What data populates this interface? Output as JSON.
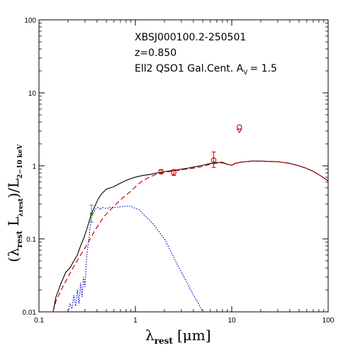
{
  "chart_data": {
    "type": "line",
    "x_scale": "log",
    "y_scale": "log",
    "xlim": [
      0.1,
      100
    ],
    "ylim": [
      0.01,
      100
    ],
    "x_ticks": [
      {
        "value": 0.1,
        "label": "0.1"
      },
      {
        "value": 1,
        "label": "1"
      },
      {
        "value": 10,
        "label": "10"
      },
      {
        "value": 100,
        "label": "100"
      }
    ],
    "y_ticks": [
      {
        "value": 0.01,
        "label": "0.01"
      },
      {
        "value": 0.1,
        "label": "0.1"
      },
      {
        "value": 1,
        "label": "1"
      },
      {
        "value": 10,
        "label": "10"
      },
      {
        "value": 100,
        "label": "100"
      }
    ],
    "xlabel": {
      "main": "λ",
      "sub": "rest",
      "unit": "[μm]"
    },
    "ylabel": {
      "part1": "(λ",
      "sub1": "rest",
      "part2": " L",
      "sub2": "λrest",
      "part3": ")/L",
      "sub3": "2−10 keV"
    },
    "annotations": {
      "source": "XBSJ000100.2-250501",
      "redshift": "z=0.850",
      "model": "Ell2 QSO1 Gal.Cent. A",
      "model_sub": "V",
      "model_val": "= 1.5"
    },
    "colors": {
      "total": "#000000",
      "galaxy": "#cc0000",
      "agn": "#0000cc",
      "photometry": "#cc0000",
      "optical_point": "#2e8b2e",
      "optical_errorbar": "#808080"
    },
    "series": [
      {
        "style": "solid",
        "color": "#000000",
        "points": [
          [
            0.14,
            0.01
          ],
          [
            0.15,
            0.016
          ],
          [
            0.17,
            0.025
          ],
          [
            0.19,
            0.035
          ],
          [
            0.21,
            0.04
          ],
          [
            0.23,
            0.05
          ],
          [
            0.25,
            0.06
          ],
          [
            0.27,
            0.08
          ],
          [
            0.29,
            0.1
          ],
          [
            0.31,
            0.13
          ],
          [
            0.33,
            0.17
          ],
          [
            0.35,
            0.22
          ],
          [
            0.38,
            0.28
          ],
          [
            0.41,
            0.35
          ],
          [
            0.45,
            0.42
          ],
          [
            0.5,
            0.48
          ],
          [
            0.55,
            0.5
          ],
          [
            0.6,
            0.52
          ],
          [
            0.7,
            0.58
          ],
          [
            0.8,
            0.63
          ],
          [
            0.9,
            0.67
          ],
          [
            1.0,
            0.7
          ],
          [
            1.2,
            0.74
          ],
          [
            1.4,
            0.76
          ],
          [
            1.6,
            0.79
          ],
          [
            1.9,
            0.82
          ],
          [
            2.2,
            0.85
          ],
          [
            2.6,
            0.87
          ],
          [
            3.0,
            0.9
          ],
          [
            3.5,
            0.93
          ],
          [
            4.0,
            0.96
          ],
          [
            5.0,
            1.02
          ],
          [
            6.0,
            1.08
          ],
          [
            7.0,
            1.11
          ],
          [
            8.0,
            1.12
          ],
          [
            9.0,
            1.05
          ],
          [
            10.0,
            1.02
          ],
          [
            11.0,
            1.09
          ],
          [
            13.0,
            1.13
          ],
          [
            16.0,
            1.16
          ],
          [
            20.0,
            1.16
          ],
          [
            30.0,
            1.14
          ],
          [
            40.0,
            1.08
          ],
          [
            50.0,
            1.0
          ],
          [
            60.0,
            0.92
          ],
          [
            70.0,
            0.84
          ],
          [
            85.0,
            0.72
          ],
          [
            100.0,
            0.62
          ]
        ]
      },
      {
        "style": "dashed",
        "color": "#cc0000",
        "points": [
          [
            0.14,
            0.01
          ],
          [
            0.15,
            0.014
          ],
          [
            0.17,
            0.02
          ],
          [
            0.2,
            0.03
          ],
          [
            0.23,
            0.042
          ],
          [
            0.26,
            0.055
          ],
          [
            0.3,
            0.075
          ],
          [
            0.34,
            0.1
          ],
          [
            0.38,
            0.13
          ],
          [
            0.42,
            0.16
          ],
          [
            0.47,
            0.2
          ],
          [
            0.55,
            0.25
          ],
          [
            0.65,
            0.31
          ],
          [
            0.75,
            0.37
          ],
          [
            0.9,
            0.45
          ],
          [
            1.05,
            0.55
          ],
          [
            1.2,
            0.63
          ],
          [
            1.4,
            0.7
          ],
          [
            1.7,
            0.78
          ],
          [
            2.0,
            0.82
          ],
          [
            2.5,
            0.85
          ],
          [
            3.0,
            0.88
          ],
          [
            4.0,
            0.93
          ],
          [
            5.0,
            0.98
          ],
          [
            6.0,
            1.05
          ],
          [
            7.0,
            1.09
          ],
          [
            8.0,
            1.1
          ],
          [
            9.0,
            1.05
          ],
          [
            10.0,
            1.02
          ],
          [
            11.0,
            1.09
          ],
          [
            13.0,
            1.13
          ],
          [
            16.0,
            1.16
          ],
          [
            20.0,
            1.16
          ],
          [
            30.0,
            1.14
          ],
          [
            40.0,
            1.08
          ],
          [
            50.0,
            1.0
          ],
          [
            60.0,
            0.92
          ],
          [
            70.0,
            0.84
          ],
          [
            85.0,
            0.72
          ],
          [
            100.0,
            0.62
          ]
        ]
      },
      {
        "style": "dotted",
        "color": "#0000cc",
        "points": [
          [
            0.2,
            0.01
          ],
          [
            0.21,
            0.013
          ],
          [
            0.22,
            0.011
          ],
          [
            0.23,
            0.017
          ],
          [
            0.24,
            0.012
          ],
          [
            0.25,
            0.02
          ],
          [
            0.26,
            0.013
          ],
          [
            0.27,
            0.025
          ],
          [
            0.28,
            0.016
          ],
          [
            0.29,
            0.03
          ],
          [
            0.3,
            0.022
          ],
          [
            0.31,
            0.05
          ],
          [
            0.32,
            0.075
          ],
          [
            0.33,
            0.1
          ],
          [
            0.34,
            0.15
          ],
          [
            0.35,
            0.2
          ],
          [
            0.37,
            0.23
          ],
          [
            0.39,
            0.26
          ],
          [
            0.41,
            0.27
          ],
          [
            0.43,
            0.25
          ],
          [
            0.45,
            0.27
          ],
          [
            0.5,
            0.26
          ],
          [
            0.55,
            0.27
          ],
          [
            0.6,
            0.27
          ],
          [
            0.7,
            0.275
          ],
          [
            0.8,
            0.28
          ],
          [
            0.9,
            0.28
          ],
          [
            1.0,
            0.26
          ],
          [
            1.1,
            0.25
          ],
          [
            1.2,
            0.22
          ],
          [
            1.4,
            0.18
          ],
          [
            1.6,
            0.15
          ],
          [
            1.8,
            0.12
          ],
          [
            2.0,
            0.1
          ],
          [
            2.3,
            0.07
          ],
          [
            2.6,
            0.05
          ],
          [
            3.0,
            0.035
          ],
          [
            3.5,
            0.024
          ],
          [
            4.0,
            0.017
          ],
          [
            4.5,
            0.013
          ],
          [
            5.0,
            0.01
          ]
        ]
      }
    ],
    "photometry": [
      {
        "x": 1.85,
        "y": 0.83,
        "yerr_low": 0.78,
        "yerr_high": 0.89,
        "marker": "open-circle"
      },
      {
        "x": 2.5,
        "y": 0.81,
        "yerr_low": 0.74,
        "yerr_high": 0.89,
        "marker": "open-circle"
      },
      {
        "x": 6.5,
        "y": 1.2,
        "yerr_low": 0.95,
        "yerr_high": 1.55,
        "marker": "open-circle"
      },
      {
        "x": 12,
        "y": 3.4,
        "marker": "open-circle"
      },
      {
        "x": 12,
        "y": 3.05,
        "marker": "down-triangle-limit"
      }
    ],
    "optical_point": {
      "x": 0.35,
      "y": 0.22,
      "yerr_low": 0.17,
      "yerr_high": 0.29
    }
  }
}
